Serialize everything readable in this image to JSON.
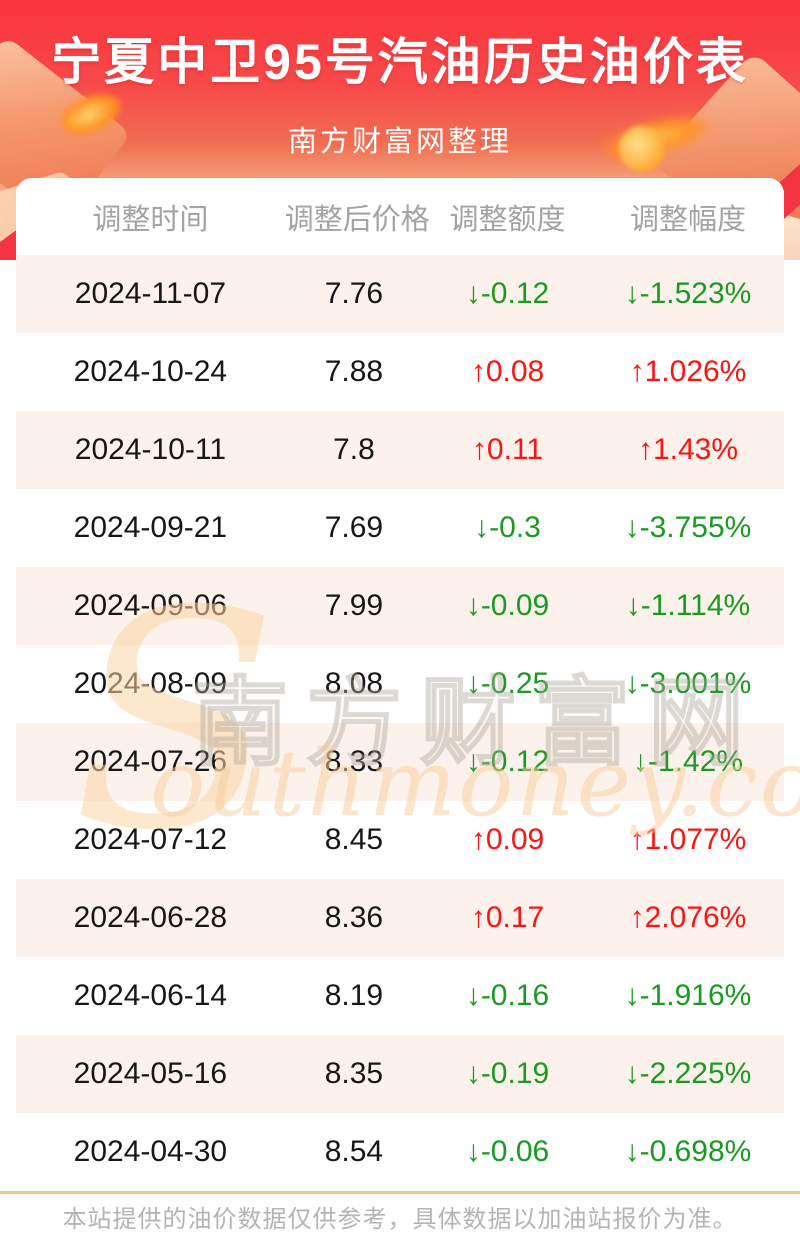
{
  "header": {
    "title": "宁夏中卫95号汽油历史油价表",
    "subtitle": "南方财富网整理"
  },
  "table": {
    "columns": [
      "调整时间",
      "调整后价格",
      "调整额度",
      "调整幅度"
    ],
    "rows": [
      {
        "date": "2024-11-07",
        "price": "7.76",
        "change": "↓-0.12",
        "percent": "↓-1.523%",
        "direction": "down"
      },
      {
        "date": "2024-10-24",
        "price": "7.88",
        "change": "↑0.08",
        "percent": "↑1.026%",
        "direction": "up"
      },
      {
        "date": "2024-10-11",
        "price": "7.8",
        "change": "↑0.11",
        "percent": "↑1.43%",
        "direction": "up"
      },
      {
        "date": "2024-09-21",
        "price": "7.69",
        "change": "↓-0.3",
        "percent": "↓-3.755%",
        "direction": "down"
      },
      {
        "date": "2024-09-06",
        "price": "7.99",
        "change": "↓-0.09",
        "percent": "↓-1.114%",
        "direction": "down"
      },
      {
        "date": "2024-08-09",
        "price": "8.08",
        "change": "↓-0.25",
        "percent": "↓-3.001%",
        "direction": "down"
      },
      {
        "date": "2024-07-26",
        "price": "8.33",
        "change": "↓-0.12",
        "percent": "↓-1.42%",
        "direction": "down"
      },
      {
        "date": "2024-07-12",
        "price": "8.45",
        "change": "↑0.09",
        "percent": "↑1.077%",
        "direction": "up"
      },
      {
        "date": "2024-06-28",
        "price": "8.36",
        "change": "↑0.17",
        "percent": "↑2.076%",
        "direction": "up"
      },
      {
        "date": "2024-06-14",
        "price": "8.19",
        "change": "↓-0.16",
        "percent": "↓-1.916%",
        "direction": "down"
      },
      {
        "date": "2024-05-16",
        "price": "8.35",
        "change": "↓-0.19",
        "percent": "↓-2.225%",
        "direction": "down"
      },
      {
        "date": "2024-04-30",
        "price": "8.54",
        "change": "↓-0.06",
        "percent": "↓-0.698%",
        "direction": "down"
      }
    ]
  },
  "watermark": {
    "initial": "S",
    "cn": "南方财富网",
    "en": "outhmoney.com"
  },
  "footer": {
    "note": "本站提供的油价数据仅供参考，具体数据以加油站报价为准。"
  },
  "colors": {
    "up_red": "#fd1412",
    "down_green": "#1b9a23",
    "hero_red": "#fa333d",
    "row_alt_pink": "#fcf2eb",
    "footer_border": "#f6c58b"
  }
}
